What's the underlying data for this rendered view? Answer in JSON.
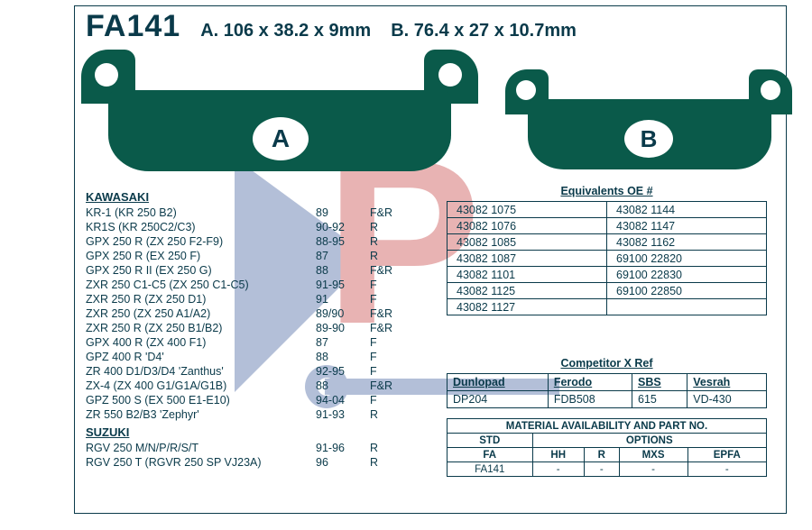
{
  "colors": {
    "ink": "#0a3a4a",
    "pad_fill": "#0a5a4a",
    "wm_red": "#c43a3a",
    "wm_blue": "#3a5a9a",
    "bg": "#ffffff"
  },
  "header": {
    "part_number": "FA141",
    "dim_a": "A.  106 x 38.2 x 9mm",
    "dim_b": "B.  76.4 x 27 x 10.7mm"
  },
  "pads": {
    "a_label": "A",
    "b_label": "B"
  },
  "fitment": {
    "brands": [
      {
        "name": "KAWASAKI",
        "rows": [
          {
            "model": "KR-1 (KR 250 B2)",
            "years": "89",
            "pos": "F&R"
          },
          {
            "model": "KR1S (KR 250C2/C3)",
            "years": "90-92",
            "pos": "R"
          },
          {
            "model": "GPX 250 R (ZX 250 F2-F9)",
            "years": "88-95",
            "pos": "R"
          },
          {
            "model": "GPX 250 R (EX 250 F)",
            "years": "87",
            "pos": "R"
          },
          {
            "model": "GPX 250 R II (EX 250 G)",
            "years": "88",
            "pos": "F&R"
          },
          {
            "model": "ZXR 250 C1-C5 (ZX 250 C1-C5)",
            "years": "91-95",
            "pos": "F"
          },
          {
            "model": "ZXR 250 R (ZX 250 D1)",
            "years": "91",
            "pos": "F"
          },
          {
            "model": "ZXR 250 (ZX 250 A1/A2)",
            "years": "89/90",
            "pos": "F&R"
          },
          {
            "model": "ZXR 250 R (ZX 250 B1/B2)",
            "years": "89-90",
            "pos": "F&R"
          },
          {
            "model": "GPX 400 R (ZX 400 F1)",
            "years": "87",
            "pos": "F"
          },
          {
            "model": "GPZ 400 R 'D4'",
            "years": "88",
            "pos": "F"
          },
          {
            "model": "ZR 400 D1/D3/D4 'Zanthus'",
            "years": "92-95",
            "pos": "F"
          },
          {
            "model": "ZX-4 (ZX 400 G1/G1A/G1B)",
            "years": "88",
            "pos": "F&R"
          },
          {
            "model": "GPZ 500 S (EX 500 E1-E10)",
            "years": "94-04",
            "pos": "F"
          },
          {
            "model": "ZR 550 B2/B3 'Zephyr'",
            "years": "91-93",
            "pos": "R"
          }
        ]
      },
      {
        "name": "SUZUKI",
        "rows": [
          {
            "model": "RGV 250 M/N/P/R/S/T",
            "years": "91-96",
            "pos": "R"
          },
          {
            "model": "RGV 250 T (RGVR 250 SP VJ23A)",
            "years": "96",
            "pos": "R"
          }
        ]
      }
    ]
  },
  "equivalents": {
    "title": "Equivalents OE #",
    "cells": [
      [
        "43082 1075",
        "43082 1144"
      ],
      [
        "43082 1076",
        "43082 1147"
      ],
      [
        "43082 1085",
        "43082 1162"
      ],
      [
        "43082 1087",
        "69100 22820"
      ],
      [
        "43082 1101",
        "69100 22830"
      ],
      [
        "43082 1125",
        "69100 22850"
      ],
      [
        "43082 1127",
        ""
      ]
    ]
  },
  "xref": {
    "title": "Competitor X Ref",
    "headers": [
      "Dunlopad",
      "Ferodo",
      "SBS",
      "Vesrah"
    ],
    "values": [
      "DP204",
      "FDB508",
      "615",
      "VD-430"
    ]
  },
  "material": {
    "title": "MATERIAL AVAILABILITY AND PART NO.",
    "std_label": "STD",
    "options_label": "OPTIONS",
    "fa_label": "FA",
    "option_headers": [
      "HH",
      "R",
      "MXS",
      "EPFA"
    ],
    "fa_value": "FA141",
    "option_values": [
      "-",
      "-",
      "-",
      "-"
    ]
  }
}
